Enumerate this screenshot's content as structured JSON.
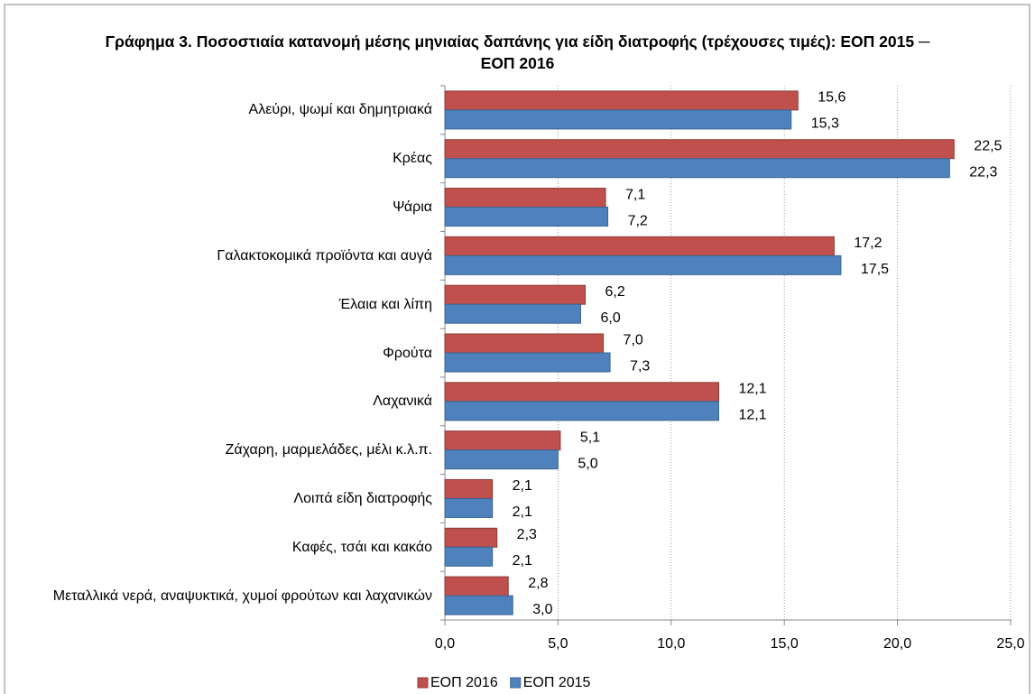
{
  "chart_data": {
    "type": "bar",
    "orientation": "horizontal",
    "title": "Γράφημα 3.  Ποσοστιαία κατανομή μέσης μηνιαίας δαπάνης για είδη διατροφής (τρέχουσες τιμές): ΕΟΠ 2015 ─ ΕΟΠ 2016",
    "categories": [
      "Αλεύρι, ψωμί και δημητριακά",
      "Κρέας",
      "Ψάρια",
      "Γαλακτοκομικά προϊόντα και αυγά",
      "Έλαια και λίπη",
      "Φρούτα",
      "Λαχανικά",
      "Ζάχαρη, μαρμελάδες, μέλι κ.λ.π.",
      "Λοιπά είδη διατροφής",
      "Καφές, τσάι και κακάο",
      "Μεταλλικά νερά, αναψυκτικά, χυμοί φρούτων και λαχανικών"
    ],
    "series": [
      {
        "name": "ΕΟΠ 2016",
        "color": "#c0504d",
        "values": [
          15.6,
          22.5,
          7.1,
          17.2,
          6.2,
          7.0,
          12.1,
          5.1,
          2.1,
          2.3,
          2.8
        ],
        "value_labels": [
          "15,6",
          "22,5",
          "7,1",
          "17,2",
          "6,2",
          "7,0",
          "12,1",
          "5,1",
          "2,1",
          "2,3",
          "2,8"
        ]
      },
      {
        "name": "ΕΟΠ 2015",
        "color": "#4f81bd",
        "values": [
          15.3,
          22.3,
          7.2,
          17.5,
          6.0,
          7.3,
          12.1,
          5.0,
          2.1,
          2.1,
          3.0
        ],
        "value_labels": [
          "15,3",
          "22,3",
          "7,2",
          "17,5",
          "6,0",
          "7,3",
          "12,1",
          "5,0",
          "2,1",
          "2,1",
          "3,0"
        ]
      }
    ],
    "xlim": [
      0,
      25
    ],
    "xticks": [
      {
        "value": 0,
        "label": "0,0"
      },
      {
        "value": 5,
        "label": "5,0"
      },
      {
        "value": 10,
        "label": "10,0"
      },
      {
        "value": 15,
        "label": "15,0"
      },
      {
        "value": 20,
        "label": "20,0"
      },
      {
        "value": 25,
        "label": "25,0"
      }
    ],
    "grid": true,
    "legend": "bottom"
  }
}
